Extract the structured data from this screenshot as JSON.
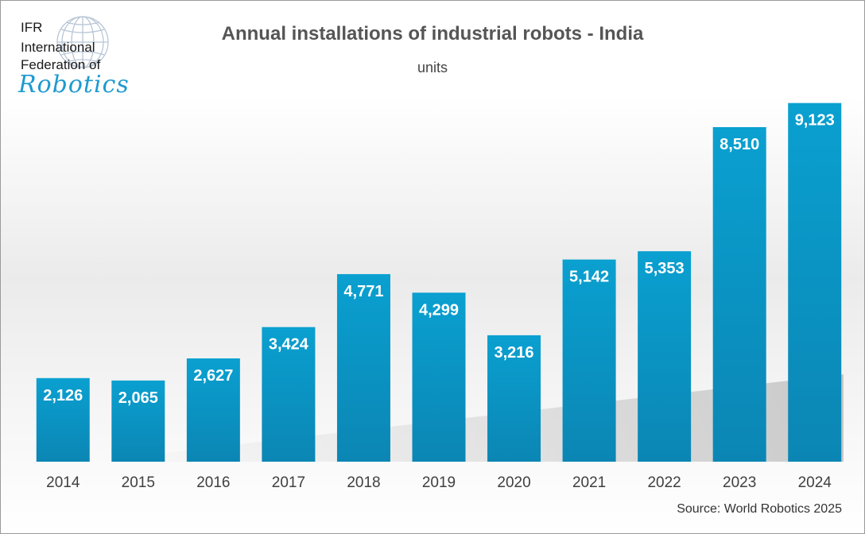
{
  "logo": {
    "line1": "IFR",
    "line2": "International",
    "line3": "Federation of",
    "script": "Robotics"
  },
  "chart_data": {
    "type": "bar",
    "title": "Annual installations of industrial robots - India",
    "subtitle": "units",
    "categories": [
      "2014",
      "2015",
      "2016",
      "2017",
      "2018",
      "2019",
      "2020",
      "2021",
      "2022",
      "2023",
      "2024"
    ],
    "values": [
      2126,
      2065,
      2627,
      3424,
      4771,
      4299,
      3216,
      5142,
      5353,
      8510,
      9123
    ],
    "value_labels": [
      "2,126",
      "2,065",
      "2,627",
      "3,424",
      "4,771",
      "4,299",
      "3,216",
      "5,142",
      "5,353",
      "8,510",
      "9,123"
    ],
    "xlabel": "",
    "ylabel": "",
    "ylim": [
      0,
      9500
    ],
    "grid": false,
    "legend": "none",
    "colors": {
      "bar_top": "#0aa0d0",
      "bar_bottom": "#0b86b4",
      "label": "#ffffff"
    }
  },
  "source": "Source: World Robotics 2025"
}
